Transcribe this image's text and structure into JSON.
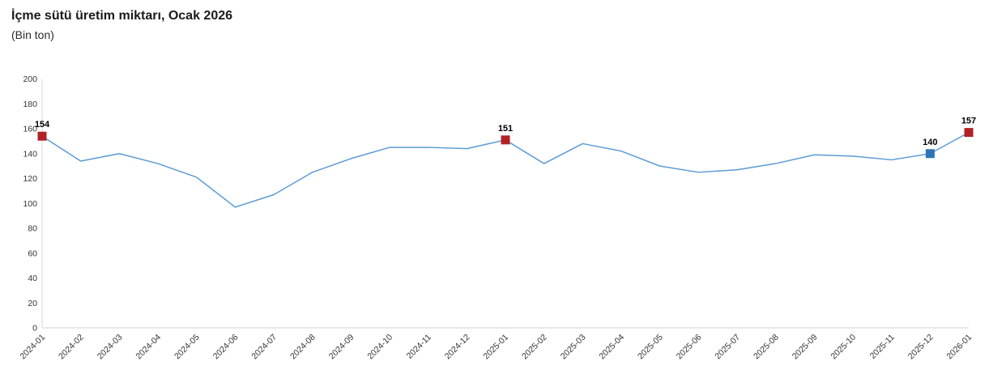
{
  "header": {
    "title": "İçme sütü üretim miktarı, Ocak 2026",
    "subtitle": "(Bin ton)"
  },
  "chart_data": {
    "type": "line",
    "title": "İçme sütü üretim miktarı, Ocak 2026",
    "subtitle": "(Bin ton)",
    "xlabel": "",
    "ylabel": "Bin ton",
    "ylim": [
      0,
      200
    ],
    "ytick_step": 20,
    "grid": false,
    "legend": "none",
    "line_color": "#5b9bd5",
    "axis_line_color": "#d6d6d6",
    "tick_label_color": "#333333",
    "data_label_color": "#000000",
    "categories": [
      "2024-01",
      "2024-02",
      "2024-03",
      "2024-04",
      "2024-05",
      "2024-06",
      "2024-07",
      "2024-08",
      "2024-09",
      "2024-10",
      "2024-11",
      "2024-12",
      "2025-01",
      "2025-02",
      "2025-03",
      "2025-04",
      "2025-05",
      "2025-06",
      "2025-07",
      "2025-08",
      "2025-09",
      "2025-10",
      "2025-11",
      "2025-12",
      "2026-01"
    ],
    "values": [
      154,
      134,
      140,
      132,
      121,
      97,
      107,
      125,
      136,
      145,
      145,
      144,
      151,
      132,
      148,
      142,
      130,
      125,
      127,
      132,
      139,
      138,
      135,
      140,
      157
    ],
    "marked_points": [
      {
        "category": "2024-01",
        "value": 154,
        "label": "154",
        "color": "#b02226"
      },
      {
        "category": "2025-01",
        "value": 151,
        "label": "151",
        "color": "#b02226"
      },
      {
        "category": "2025-12",
        "value": 140,
        "label": "140",
        "color": "#2e75b6"
      },
      {
        "category": "2026-01",
        "value": 157,
        "label": "157",
        "color": "#b02226"
      }
    ]
  }
}
